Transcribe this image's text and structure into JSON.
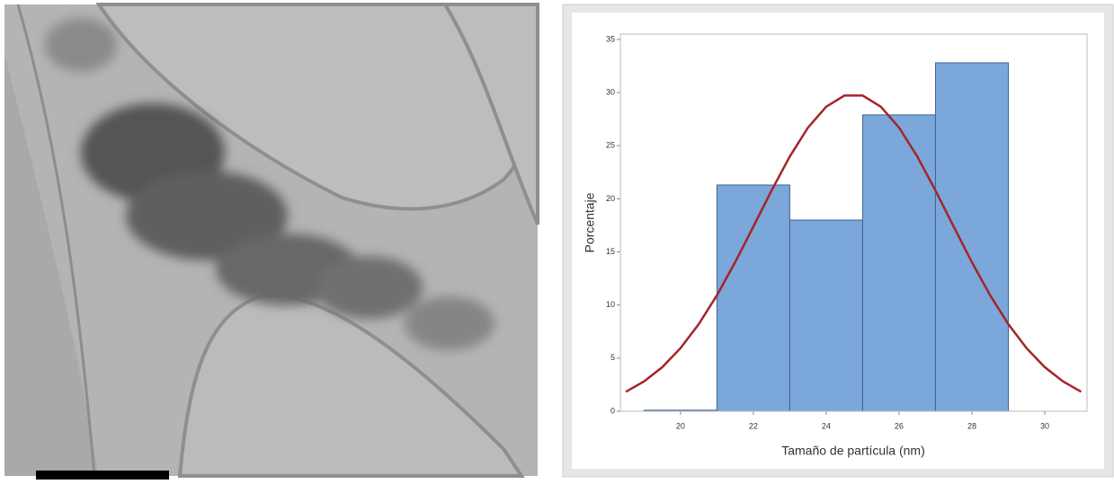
{
  "chart_data": {
    "type": "histogram",
    "x_label": "Tamaño de partícula (nm)",
    "y_label": "Porcentaje",
    "bins": [
      19,
      21,
      23,
      25,
      27,
      29
    ],
    "counts": [
      0.1,
      21.3,
      18.0,
      27.9,
      32.8
    ],
    "color": "#7ba7da",
    "edge_color": "#3d6490",
    "curve": {
      "color": "#a3252b",
      "x": [
        18.5,
        19,
        19.5,
        20,
        20.5,
        21,
        21.5,
        22,
        22.5,
        23,
        23.5,
        24,
        24.5,
        25,
        25.5,
        26,
        26.5,
        27,
        27.5,
        28,
        28.5,
        29,
        29.5,
        30,
        30.5,
        31
      ],
      "values": [
        1.83,
        2.81,
        4.15,
        5.94,
        8.2,
        10.92,
        14.03,
        17.38,
        20.78,
        23.98,
        26.7,
        28.67,
        29.72,
        29.72,
        28.67,
        26.7,
        23.98,
        20.78,
        17.38,
        14.03,
        10.92,
        8.2,
        5.94,
        4.15,
        2.81,
        1.83
      ]
    },
    "xlim": [
      18.35,
      31.16
    ],
    "ylim": [
      0,
      35.5
    ],
    "xticks": [
      20,
      22,
      24,
      26,
      28,
      30
    ],
    "yticks": [
      0,
      5,
      10,
      15,
      20,
      25,
      30,
      35
    ]
  }
}
